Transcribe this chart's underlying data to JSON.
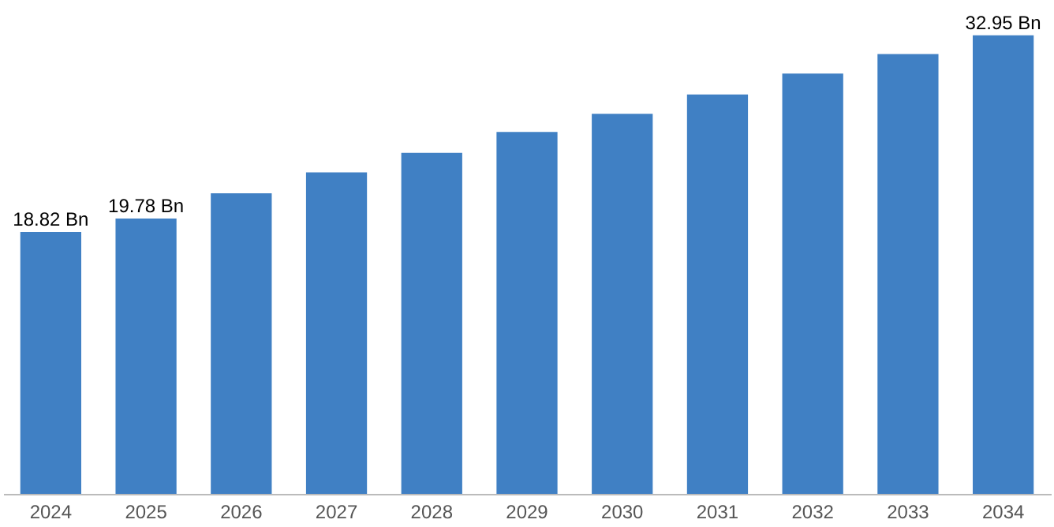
{
  "chart_data": {
    "type": "bar",
    "categories": [
      "2024",
      "2025",
      "2026",
      "2027",
      "2028",
      "2029",
      "2030",
      "2031",
      "2032",
      "2033",
      "2034"
    ],
    "values": [
      18.82,
      19.78,
      21.6,
      23.1,
      24.5,
      26.0,
      27.3,
      28.7,
      30.2,
      31.6,
      32.95
    ],
    "value_labels": [
      "18.82 Bn",
      "19.78 Bn",
      null,
      null,
      null,
      null,
      null,
      null,
      null,
      null,
      "32.95 Bn"
    ],
    "color": "#4080c4"
  }
}
